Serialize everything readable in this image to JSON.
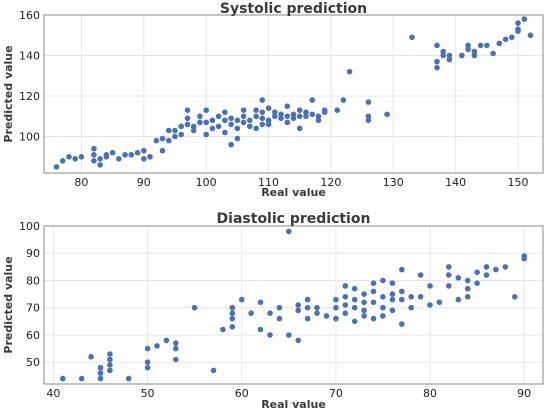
{
  "chart_data": [
    {
      "type": "scatter",
      "title": "Systolic prediction",
      "xlabel": "Real value",
      "ylabel": "Predicted value",
      "xlim": [
        74,
        154
      ],
      "ylim": [
        82,
        160
      ],
      "xticks": [
        80,
        90,
        100,
        110,
        120,
        130,
        140,
        150
      ],
      "yticks": [
        100,
        120,
        140,
        160
      ],
      "grid": true,
      "color": "#4a70b5",
      "points": [
        [
          76,
          85
        ],
        [
          77,
          88
        ],
        [
          78,
          90
        ],
        [
          79,
          89
        ],
        [
          80,
          90
        ],
        [
          82,
          94
        ],
        [
          82,
          91
        ],
        [
          82,
          88
        ],
        [
          83,
          89
        ],
        [
          83,
          86
        ],
        [
          84,
          91
        ],
        [
          84,
          90
        ],
        [
          85,
          92
        ],
        [
          86,
          89
        ],
        [
          87,
          91
        ],
        [
          88,
          91
        ],
        [
          89,
          92
        ],
        [
          90,
          93
        ],
        [
          90,
          89
        ],
        [
          91,
          90
        ],
        [
          92,
          98
        ],
        [
          93,
          99
        ],
        [
          93,
          93
        ],
        [
          94,
          103
        ],
        [
          94,
          98
        ],
        [
          95,
          100
        ],
        [
          95,
          103
        ],
        [
          96,
          105
        ],
        [
          96,
          101
        ],
        [
          97,
          106
        ],
        [
          97,
          109
        ],
        [
          97,
          113
        ],
        [
          98,
          103
        ],
        [
          98,
          105
        ],
        [
          99,
          107
        ],
        [
          99,
          110
        ],
        [
          100,
          107
        ],
        [
          100,
          101
        ],
        [
          100,
          113
        ],
        [
          101,
          108
        ],
        [
          101,
          104
        ],
        [
          102,
          105
        ],
        [
          102,
          110
        ],
        [
          103,
          108
        ],
        [
          103,
          112
        ],
        [
          103,
          102
        ],
        [
          104,
          109
        ],
        [
          104,
          106
        ],
        [
          104,
          96
        ],
        [
          105,
          104
        ],
        [
          105,
          108
        ],
        [
          105,
          99
        ],
        [
          106,
          107
        ],
        [
          106,
          110
        ],
        [
          106,
          113
        ],
        [
          107,
          105
        ],
        [
          107,
          108
        ],
        [
          108,
          110
        ],
        [
          108,
          113
        ],
        [
          108,
          104
        ],
        [
          109,
          106
        ],
        [
          109,
          109
        ],
        [
          109,
          112
        ],
        [
          109,
          118
        ],
        [
          110,
          108
        ],
        [
          110,
          114
        ],
        [
          110,
          106
        ],
        [
          111,
          110
        ],
        [
          111,
          112
        ],
        [
          112,
          109
        ],
        [
          112,
          111
        ],
        [
          113,
          107
        ],
        [
          113,
          110
        ],
        [
          113,
          115
        ],
        [
          114,
          109
        ],
        [
          114,
          111
        ],
        [
          115,
          110
        ],
        [
          115,
          113
        ],
        [
          115,
          104
        ],
        [
          116,
          110
        ],
        [
          116,
          112
        ],
        [
          117,
          111
        ],
        [
          117,
          118
        ],
        [
          118,
          108
        ],
        [
          118,
          110
        ],
        [
          119,
          112
        ],
        [
          119,
          113
        ],
        [
          121,
          113
        ],
        [
          122,
          118
        ],
        [
          123,
          132
        ],
        [
          126,
          117
        ],
        [
          126,
          110
        ],
        [
          126,
          108
        ],
        [
          129,
          111
        ],
        [
          133,
          149
        ],
        [
          137,
          134
        ],
        [
          137,
          137
        ],
        [
          137,
          145
        ],
        [
          138,
          142
        ],
        [
          138,
          140
        ],
        [
          139,
          138
        ],
        [
          139,
          140
        ],
        [
          141,
          140
        ],
        [
          142,
          145
        ],
        [
          142,
          143
        ],
        [
          143,
          142
        ],
        [
          143,
          140
        ],
        [
          144,
          145
        ],
        [
          145,
          145
        ],
        [
          146,
          141
        ],
        [
          147,
          146
        ],
        [
          148,
          148
        ],
        [
          149,
          149
        ],
        [
          150,
          152
        ],
        [
          150,
          156
        ],
        [
          151,
          158
        ],
        [
          152,
          150
        ],
        [
          150,
          153
        ]
      ]
    },
    {
      "type": "scatter",
      "title": "Diastolic prediction",
      "xlabel": "Real value",
      "ylabel": "Predicted value",
      "xlim": [
        39,
        92
      ],
      "ylim": [
        42,
        100
      ],
      "xticks": [
        40,
        50,
        60,
        70,
        80,
        90
      ],
      "yticks": [
        50,
        60,
        70,
        80,
        90,
        100
      ],
      "grid": true,
      "color": "#4a70b5",
      "points": [
        [
          41,
          44
        ],
        [
          43,
          44
        ],
        [
          44,
          52
        ],
        [
          45,
          48
        ],
        [
          45,
          46
        ],
        [
          45,
          44
        ],
        [
          46,
          53
        ],
        [
          46,
          51
        ],
        [
          46,
          49
        ],
        [
          46,
          47
        ],
        [
          48,
          44
        ],
        [
          50,
          55
        ],
        [
          50,
          50
        ],
        [
          50,
          48
        ],
        [
          51,
          56
        ],
        [
          52,
          58
        ],
        [
          53,
          57
        ],
        [
          53,
          55
        ],
        [
          53,
          51
        ],
        [
          55,
          70
        ],
        [
          57,
          47
        ],
        [
          58,
          62
        ],
        [
          59,
          70
        ],
        [
          59,
          68
        ],
        [
          59,
          66
        ],
        [
          59,
          63
        ],
        [
          60,
          73
        ],
        [
          61,
          68
        ],
        [
          62,
          72
        ],
        [
          62,
          62
        ],
        [
          63,
          68
        ],
        [
          63,
          60
        ],
        [
          64,
          70
        ],
        [
          64,
          66
        ],
        [
          65,
          98
        ],
        [
          65,
          60
        ],
        [
          66,
          58
        ],
        [
          66,
          69
        ],
        [
          66,
          71
        ],
        [
          67,
          73
        ],
        [
          67,
          70
        ],
        [
          67,
          66
        ],
        [
          68,
          70
        ],
        [
          68,
          68
        ],
        [
          69,
          67
        ],
        [
          70,
          73
        ],
        [
          70,
          70
        ],
        [
          70,
          66
        ],
        [
          71,
          78
        ],
        [
          71,
          74
        ],
        [
          71,
          71
        ],
        [
          71,
          68
        ],
        [
          72,
          77
        ],
        [
          72,
          73
        ],
        [
          72,
          70
        ],
        [
          72,
          65
        ],
        [
          73,
          75
        ],
        [
          73,
          72
        ],
        [
          73,
          69
        ],
        [
          73,
          67
        ],
        [
          74,
          79
        ],
        [
          74,
          76
        ],
        [
          74,
          72
        ],
        [
          74,
          66
        ],
        [
          75,
          80
        ],
        [
          75,
          74
        ],
        [
          75,
          70
        ],
        [
          75,
          67
        ],
        [
          76,
          79
        ],
        [
          76,
          75
        ],
        [
          76,
          73
        ],
        [
          76,
          69
        ],
        [
          77,
          84
        ],
        [
          77,
          76
        ],
        [
          77,
          73
        ],
        [
          77,
          64
        ],
        [
          78,
          74
        ],
        [
          78,
          70
        ],
        [
          79,
          82
        ],
        [
          79,
          74
        ],
        [
          80,
          78
        ],
        [
          80,
          71
        ],
        [
          81,
          72
        ],
        [
          82,
          85
        ],
        [
          82,
          82
        ],
        [
          82,
          78
        ],
        [
          83,
          81
        ],
        [
          83,
          73
        ],
        [
          84,
          80
        ],
        [
          84,
          77
        ],
        [
          85,
          83
        ],
        [
          85,
          79
        ],
        [
          86,
          85
        ],
        [
          86,
          82
        ],
        [
          87,
          84
        ],
        [
          88,
          85
        ],
        [
          89,
          74
        ],
        [
          90,
          89
        ],
        [
          90,
          88
        ],
        [
          84,
          74
        ]
      ]
    }
  ]
}
